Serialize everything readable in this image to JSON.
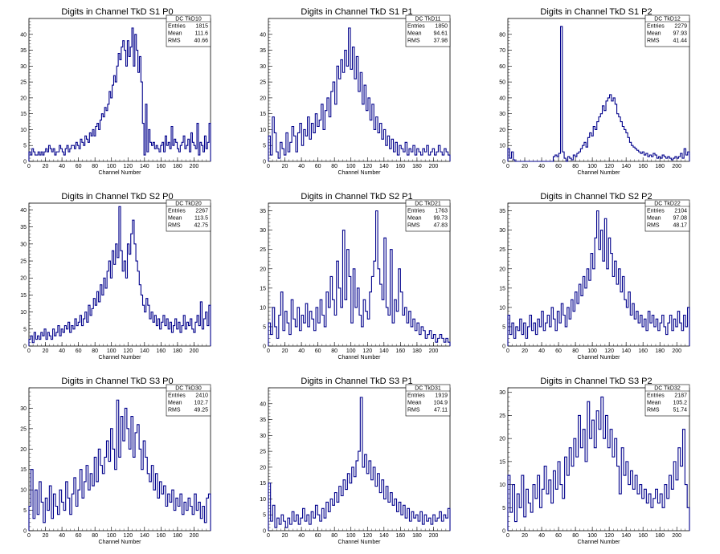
{
  "colors": {
    "histogram": "#00008b",
    "axis": "#000000",
    "background": "#ffffff"
  },
  "chart_data": [
    {
      "type": "bar",
      "title": "Digits in Channel TkD S1 P0",
      "xlabel": "Channel Number",
      "ylabel": "",
      "xlim": [
        0,
        220
      ],
      "ylim": [
        0,
        45
      ],
      "yticks": [
        0,
        5,
        10,
        15,
        20,
        25,
        30,
        35,
        40
      ],
      "xticks": [
        0,
        20,
        40,
        60,
        80,
        100,
        120,
        140,
        160,
        180,
        200
      ],
      "stats": {
        "name": "DC_TkD10",
        "entries_label": "Entries",
        "entries": "1815",
        "mean_label": "Mean",
        "mean": "111.6",
        "rms_label": "RMS",
        "rms": "40.66"
      },
      "peak": 113,
      "baseline": 3,
      "values": [
        3,
        2,
        4,
        3,
        2,
        2,
        3,
        2,
        3,
        2,
        3,
        4,
        3,
        5,
        4,
        3,
        4,
        2,
        3,
        3,
        5,
        4,
        3,
        2,
        4,
        5,
        3,
        4,
        5,
        5,
        4,
        6,
        5,
        4,
        7,
        6,
        5,
        8,
        7,
        6,
        9,
        8,
        10,
        8,
        11,
        12,
        10,
        13,
        15,
        14,
        17,
        16,
        18,
        22,
        20,
        24,
        27,
        25,
        30,
        34,
        32,
        36,
        38,
        35,
        30,
        38,
        33,
        36,
        42,
        30,
        40,
        35,
        28,
        33,
        25,
        12,
        2,
        18,
        3,
        10,
        6,
        5,
        6,
        4,
        5,
        4,
        3,
        5,
        6,
        3,
        8,
        5,
        6,
        4,
        11,
        5,
        7,
        6,
        4,
        3,
        5,
        6,
        8,
        4,
        5,
        7,
        3,
        9,
        6,
        5,
        4,
        12,
        2,
        6,
        5,
        3,
        8,
        4,
        6,
        12
      ]
    },
    {
      "type": "bar",
      "title": "Digits in Channel TkD S1 P1",
      "xlabel": "Channel Number",
      "ylabel": "",
      "xlim": [
        0,
        220
      ],
      "ylim": [
        0,
        45
      ],
      "yticks": [
        0,
        5,
        10,
        15,
        20,
        25,
        30,
        35,
        40
      ],
      "xticks": [
        0,
        20,
        40,
        60,
        80,
        100,
        120,
        140,
        160,
        180,
        200
      ],
      "stats": {
        "name": "DC_TkD11",
        "entries_label": "Entries",
        "entries": "1850",
        "mean_label": "Mean",
        "mean": "94.61",
        "rms_label": "RMS",
        "rms": "37.98"
      },
      "values": [
        8,
        2,
        14,
        9,
        3,
        1,
        6,
        4,
        2,
        9,
        3,
        6,
        11,
        8,
        3,
        9,
        12,
        5,
        10,
        8,
        14,
        7,
        12,
        9,
        15,
        11,
        13,
        18,
        10,
        16,
        20,
        14,
        22,
        25,
        18,
        30,
        26,
        32,
        28,
        35,
        30,
        42,
        29,
        36,
        26,
        33,
        22,
        28,
        18,
        24,
        16,
        20,
        13,
        18,
        10,
        14,
        9,
        12,
        7,
        10,
        5,
        8,
        4,
        7,
        3,
        6,
        2,
        5,
        4,
        3,
        6,
        2,
        4,
        3,
        5,
        2,
        4,
        3,
        2,
        4,
        3,
        5,
        2,
        3,
        4,
        2,
        3,
        5,
        3,
        2,
        4,
        3,
        2
      ]
    },
    {
      "type": "bar",
      "title": "Digits in Channel TkD S1 P2",
      "xlabel": "Channel Number",
      "ylabel": "",
      "xlim": [
        0,
        215
      ],
      "ylim": [
        0,
        90
      ],
      "yticks": [
        0,
        10,
        20,
        30,
        40,
        50,
        60,
        70,
        80
      ],
      "xticks": [
        0,
        20,
        40,
        60,
        80,
        100,
        120,
        140,
        160,
        180,
        200
      ],
      "stats": {
        "name": "DC_TkD12",
        "entries_label": "Entries",
        "entries": "2279",
        "mean_label": "Mean",
        "mean": "97.93",
        "rms_label": "RMS",
        "rms": "41.44"
      },
      "values": [
        8,
        2,
        6,
        1,
        0,
        0,
        0,
        0,
        0,
        0,
        0,
        0,
        0,
        0,
        0,
        0,
        0,
        0,
        0,
        0,
        0,
        0,
        0,
        0,
        0,
        3,
        4,
        3,
        5,
        85,
        6,
        2,
        0,
        3,
        2,
        1,
        4,
        3,
        5,
        6,
        8,
        10,
        12,
        9,
        15,
        18,
        16,
        22,
        20,
        25,
        28,
        30,
        35,
        32,
        38,
        40,
        42,
        38,
        40,
        36,
        30,
        28,
        25,
        22,
        20,
        18,
        15,
        12,
        10,
        9,
        8,
        7,
        6,
        5,
        6,
        4,
        5,
        3,
        4,
        3,
        5,
        4,
        2,
        3,
        2,
        4,
        3,
        2,
        3,
        2,
        1,
        2,
        3,
        2,
        3,
        5,
        2,
        8,
        4,
        6
      ]
    },
    {
      "type": "bar",
      "title": "Digits in Channel TkD S2 P0",
      "xlabel": "Channel Number",
      "ylabel": "",
      "xlim": [
        0,
        220
      ],
      "ylim": [
        0,
        42
      ],
      "yticks": [
        0,
        5,
        10,
        15,
        20,
        25,
        30,
        35,
        40
      ],
      "xticks": [
        0,
        20,
        40,
        60,
        80,
        100,
        120,
        140,
        160,
        180,
        200
      ],
      "stats": {
        "name": "DC_TkD20",
        "entries_label": "Entries",
        "entries": "2267",
        "mean_label": "Mean",
        "mean": "113.5",
        "rms_label": "RMS",
        "rms": "42.75"
      },
      "values": [
        2,
        3,
        1,
        4,
        2,
        3,
        2,
        4,
        3,
        5,
        2,
        4,
        3,
        2,
        5,
        3,
        4,
        6,
        3,
        5,
        4,
        6,
        5,
        7,
        4,
        6,
        5,
        8,
        6,
        7,
        9,
        6,
        8,
        10,
        7,
        12,
        9,
        11,
        14,
        12,
        16,
        13,
        18,
        15,
        20,
        17,
        22,
        25,
        20,
        28,
        24,
        30,
        26,
        41,
        28,
        22,
        25,
        20,
        30,
        27,
        33,
        37,
        30,
        25,
        22,
        18,
        15,
        12,
        10,
        14,
        12,
        8,
        10,
        7,
        9,
        6,
        8,
        5,
        7,
        9,
        6,
        8,
        5,
        7,
        4,
        6,
        8,
        5,
        7,
        4,
        6,
        9,
        5,
        7,
        6,
        8,
        5,
        4,
        7,
        9,
        6,
        13,
        5,
        8,
        10,
        6,
        12
      ]
    },
    {
      "type": "bar",
      "title": "Digits in Channel TkD S2 P1",
      "xlabel": "Channel Number",
      "ylabel": "",
      "xlim": [
        0,
        220
      ],
      "ylim": [
        0,
        37
      ],
      "yticks": [
        0,
        5,
        10,
        15,
        20,
        25,
        30,
        35
      ],
      "xticks": [
        0,
        20,
        40,
        60,
        80,
        100,
        120,
        140,
        160,
        180,
        200
      ],
      "stats": {
        "name": "DC_TkD21",
        "entries_label": "Entries",
        "entries": "1763",
        "mean_label": "Mean",
        "mean": "99.73",
        "rms_label": "RMS",
        "rms": "47.83"
      },
      "values": [
        6,
        3,
        10,
        5,
        2,
        8,
        14,
        4,
        9,
        6,
        3,
        12,
        7,
        5,
        10,
        4,
        8,
        6,
        11,
        5,
        9,
        7,
        4,
        10,
        6,
        12,
        8,
        5,
        14,
        10,
        18,
        12,
        8,
        22,
        15,
        10,
        30,
        12,
        25,
        18,
        6,
        20,
        10,
        15,
        8,
        5,
        12,
        9,
        7,
        14,
        18,
        22,
        35,
        20,
        16,
        12,
        28,
        10,
        8,
        25,
        6,
        12,
        9,
        20,
        14,
        8,
        10,
        6,
        9,
        5,
        7,
        4,
        6,
        3,
        5,
        4,
        2,
        3,
        4,
        2,
        3,
        1,
        2,
        3,
        2,
        1,
        2,
        1
      ]
    },
    {
      "type": "bar",
      "title": "Digits in Channel TkD S2 P2",
      "xlabel": "Channel Number",
      "ylabel": "",
      "xlim": [
        0,
        215
      ],
      "ylim": [
        0,
        37
      ],
      "yticks": [
        0,
        5,
        10,
        15,
        20,
        25,
        30,
        35
      ],
      "xticks": [
        0,
        20,
        40,
        60,
        80,
        100,
        120,
        140,
        160,
        180,
        200
      ],
      "stats": {
        "name": "DC_TkD22",
        "entries_label": "Entries",
        "entries": "2104",
        "mean_label": "Mean",
        "mean": "97.08",
        "rms_label": "RMS",
        "rms": "48.17"
      },
      "values": [
        8,
        3,
        6,
        2,
        5,
        4,
        7,
        3,
        6,
        2,
        5,
        8,
        4,
        6,
        3,
        7,
        5,
        9,
        4,
        6,
        8,
        5,
        10,
        7,
        4,
        9,
        6,
        11,
        8,
        5,
        10,
        7,
        12,
        9,
        14,
        11,
        16,
        13,
        18,
        15,
        20,
        17,
        24,
        20,
        28,
        35,
        25,
        30,
        22,
        33,
        20,
        28,
        24,
        18,
        22,
        16,
        20,
        14,
        18,
        12,
        10,
        14,
        8,
        11,
        7,
        9,
        6,
        8,
        5,
        7,
        4,
        9,
        6,
        8,
        5,
        7,
        4,
        6,
        8,
        5,
        3,
        6,
        8,
        4,
        7,
        5,
        9,
        6,
        4,
        8,
        5,
        10
      ]
    },
    {
      "type": "bar",
      "title": "Digits in Channel TkD S3 P0",
      "xlabel": "Channel Number",
      "ylabel": "",
      "xlim": [
        0,
        220
      ],
      "ylim": [
        0,
        35
      ],
      "yticks": [
        0,
        5,
        10,
        15,
        20,
        25,
        30
      ],
      "xticks": [
        0,
        20,
        40,
        60,
        80,
        100,
        120,
        140,
        160,
        180,
        200
      ],
      "stats": {
        "name": "DC_TkD30",
        "entries_label": "Entries",
        "entries": "2410",
        "mean_label": "Mean",
        "mean": "102.7",
        "rms_label": "RMS",
        "rms": "49.25"
      },
      "values": [
        6,
        15,
        3,
        10,
        4,
        12,
        7,
        2,
        8,
        5,
        11,
        3,
        9,
        6,
        4,
        10,
        7,
        5,
        12,
        8,
        4,
        9,
        13,
        6,
        10,
        15,
        8,
        12,
        16,
        10,
        14,
        11,
        18,
        12,
        20,
        16,
        14,
        18,
        22,
        17,
        25,
        20,
        15,
        32,
        18,
        28,
        22,
        30,
        25,
        20,
        28,
        18,
        24,
        26,
        20,
        15,
        22,
        18,
        14,
        12,
        16,
        10,
        14,
        8,
        12,
        9,
        11,
        6,
        9,
        7,
        10,
        5,
        8,
        6,
        9,
        4,
        7,
        5,
        8,
        6,
        4,
        9,
        5,
        7,
        3,
        6,
        2,
        8,
        9
      ]
    },
    {
      "type": "bar",
      "title": "Digits in Channel TkD S3 P1",
      "xlabel": "Channel Number",
      "ylabel": "",
      "xlim": [
        0,
        220
      ],
      "ylim": [
        0,
        45
      ],
      "yticks": [
        0,
        5,
        10,
        15,
        20,
        25,
        30,
        35,
        40
      ],
      "xticks": [
        0,
        20,
        40,
        60,
        80,
        100,
        120,
        140,
        160,
        180,
        200
      ],
      "stats": {
        "name": "DC_TkD31",
        "entries_label": "Entries",
        "entries": "1919",
        "mean_label": "Mean",
        "mean": "104.9",
        "rms_label": "RMS",
        "rms": "47.11"
      },
      "values": [
        15,
        3,
        8,
        1,
        4,
        2,
        5,
        3,
        1,
        4,
        2,
        6,
        3,
        5,
        2,
        4,
        7,
        3,
        5,
        2,
        6,
        4,
        8,
        5,
        3,
        7,
        4,
        9,
        6,
        10,
        8,
        12,
        9,
        14,
        11,
        16,
        13,
        18,
        15,
        20,
        17,
        22,
        25,
        42,
        20,
        24,
        18,
        22,
        16,
        20,
        14,
        18,
        12,
        16,
        10,
        14,
        9,
        12,
        8,
        10,
        6,
        9,
        5,
        8,
        4,
        7,
        3,
        6,
        4,
        5,
        3,
        6,
        2,
        5,
        3,
        4,
        2,
        5,
        3,
        4,
        6,
        3,
        5,
        4,
        7
      ]
    },
    {
      "type": "bar",
      "title": "Digits in Channel TkD S3 P2",
      "xlabel": "Channel Number",
      "ylabel": "",
      "xlim": [
        0,
        215
      ],
      "ylim": [
        0,
        31
      ],
      "yticks": [
        0,
        5,
        10,
        15,
        20,
        25,
        30
      ],
      "xticks": [
        0,
        20,
        40,
        60,
        80,
        100,
        120,
        140,
        160,
        180,
        200
      ],
      "stats": {
        "name": "DC_TkD32",
        "entries_label": "Entries",
        "entries": "2187",
        "mean_label": "Mean",
        "mean": "105.2",
        "rms_label": "RMS",
        "rms": "51.74"
      },
      "values": [
        12,
        4,
        10,
        2,
        8,
        5,
        12,
        3,
        9,
        6,
        4,
        10,
        7,
        12,
        5,
        9,
        14,
        8,
        11,
        6,
        13,
        9,
        15,
        10,
        7,
        16,
        12,
        18,
        14,
        20,
        16,
        25,
        18,
        22,
        15,
        28,
        20,
        24,
        18,
        26,
        22,
        29,
        20,
        25,
        18,
        22,
        16,
        20,
        14,
        8,
        18,
        12,
        15,
        10,
        13,
        9,
        12,
        8,
        10,
        7,
        9,
        6,
        8,
        5,
        7,
        9,
        6,
        8,
        5,
        10,
        7,
        12,
        9,
        15,
        11,
        18,
        14,
        22,
        10,
        5
      ]
    }
  ]
}
